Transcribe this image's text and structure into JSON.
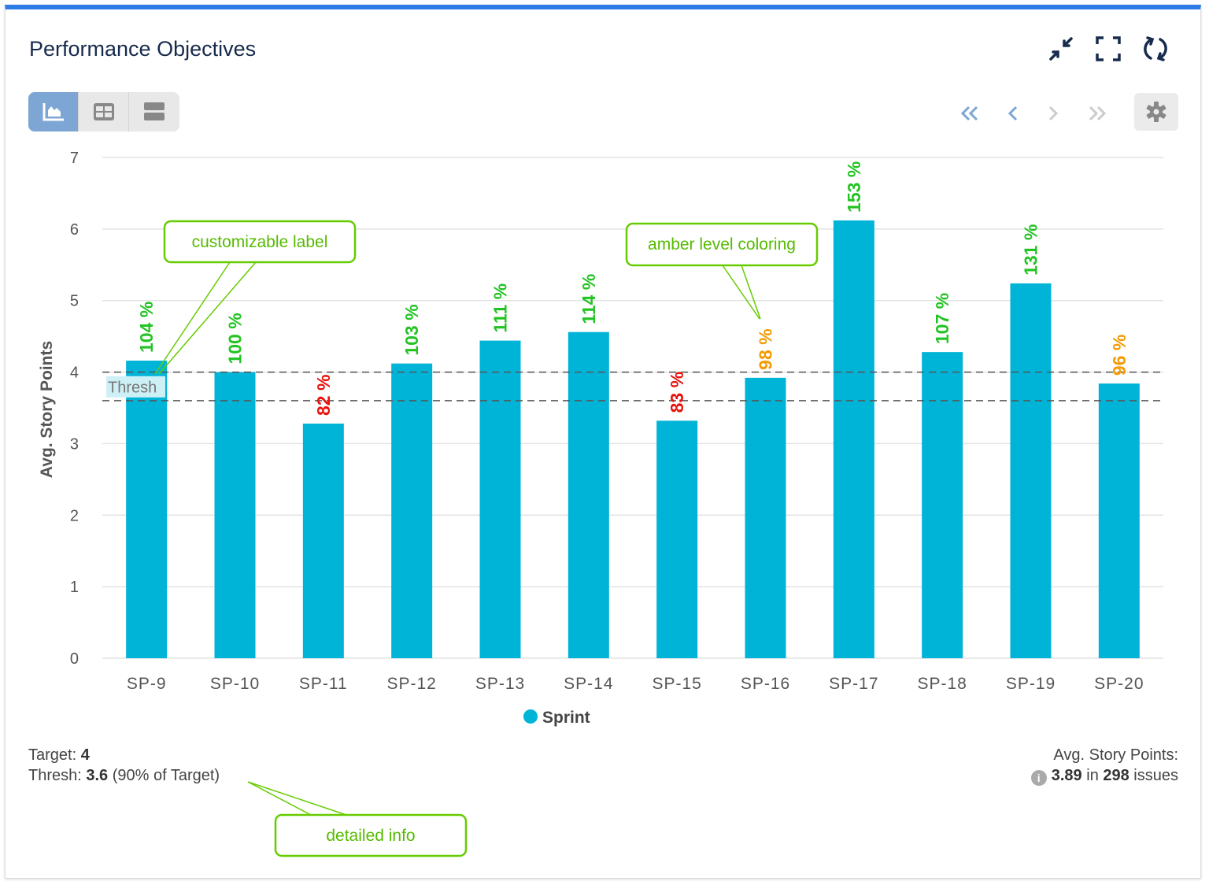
{
  "header": {
    "title": "Performance Objectives",
    "icons": [
      "collapse-icon",
      "fullscreen-icon",
      "refresh-icon"
    ]
  },
  "view_toggle": {
    "options": [
      "chart-view",
      "table-view",
      "list-view"
    ],
    "active": "chart-view"
  },
  "pagination": {
    "icons": [
      "first-page-icon",
      "prev-page-icon",
      "next-page-icon",
      "last-page-icon"
    ],
    "settings": "gear-icon"
  },
  "colors": {
    "bar": "#00b4d8",
    "above": "#22c322",
    "amber": "#f59a00",
    "below": "#e8120c",
    "accent": "#2d7be5",
    "callout": "#66cc00"
  },
  "chart_data": {
    "type": "bar",
    "categories": [
      "SP-9",
      "SP-10",
      "SP-11",
      "SP-12",
      "SP-13",
      "SP-14",
      "SP-15",
      "SP-16",
      "SP-17",
      "SP-18",
      "SP-19",
      "SP-20"
    ],
    "series": [
      {
        "name": "Sprint",
        "values": [
          4.16,
          4.0,
          3.28,
          4.12,
          4.44,
          4.56,
          3.32,
          3.92,
          6.12,
          4.28,
          5.24,
          3.84
        ]
      }
    ],
    "data_labels": [
      "104 %",
      "100 %",
      "82 %",
      "103 %",
      "111 %",
      "114 %",
      "83 %",
      "98 %",
      "153 %",
      "107 %",
      "131 %",
      "96 %"
    ],
    "ylabel": "Avg. Story Points",
    "ylim": [
      0,
      7
    ],
    "yticks": [
      "0",
      "1",
      "2",
      "3",
      "4",
      "5",
      "6",
      "7"
    ],
    "grid": true,
    "legend": "bottom",
    "target_line": 4,
    "threshold_line": 3.6,
    "threshold_label": "Thresh"
  },
  "callouts": {
    "label": "customizable label",
    "amber": "amber level coloring",
    "info": "detailed info"
  },
  "footer": {
    "target_label": "Target: ",
    "target_value": "4",
    "thresh_label": "Thresh: ",
    "thresh_value": "3.6",
    "thresh_note": " (90% of Target)",
    "avg_label": "Avg. Story Points:",
    "avg_value": "3.89",
    "in_text": " in ",
    "issues_count": "298",
    "issues_text": " issues"
  }
}
